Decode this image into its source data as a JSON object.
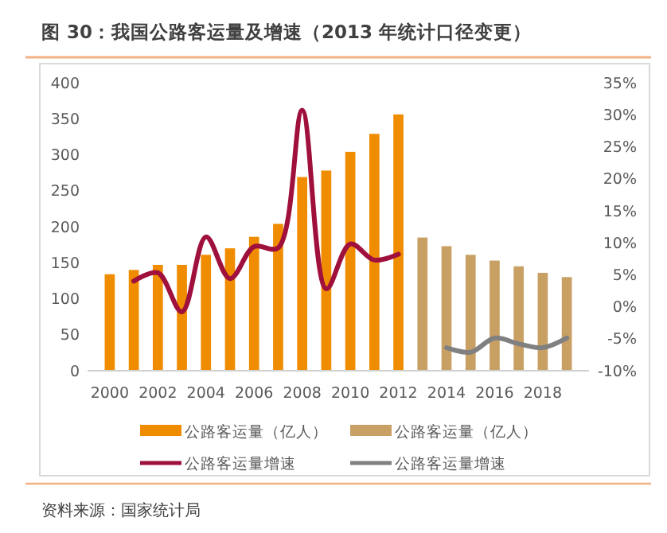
{
  "chart_data": {
    "type": "bar",
    "title": "图 30：我国公路客运量及增速（2013 年统计口径变更）",
    "categories": [
      "2000",
      null,
      "2002",
      null,
      "2004",
      null,
      "2006",
      null,
      "2008",
      null,
      "2010",
      null,
      "2012",
      null,
      "2014",
      null,
      "2016",
      null,
      "2018",
      null
    ],
    "series": [
      {
        "name": "公路客运量（亿人）",
        "color": "#f08c00",
        "values": [
          134,
          140,
          147,
          147,
          161,
          170,
          186,
          204,
          269,
          278,
          304,
          329,
          356,
          null,
          null,
          null,
          null,
          null,
          null,
          null
        ]
      },
      {
        "name": "公路客运量（亿人）",
        "color": "#c8a064",
        "values": [
          null,
          null,
          null,
          null,
          null,
          null,
          null,
          null,
          null,
          null,
          null,
          null,
          null,
          185,
          173,
          161,
          153,
          145,
          136,
          130
        ]
      },
      {
        "name": "公路客运量增速",
        "type": "line",
        "axis": "y2",
        "color": "#a0103c",
        "values": [
          null,
          4.0,
          5.3,
          -0.8,
          10.9,
          4.4,
          9.4,
          9.2,
          30.7,
          2.8,
          9.8,
          7.3,
          8.2,
          null,
          null,
          null,
          null,
          null,
          null,
          null
        ]
      },
      {
        "name": "公路客运量增速",
        "type": "line",
        "axis": "y2",
        "color": "#808080",
        "values": [
          null,
          null,
          null,
          null,
          null,
          null,
          null,
          null,
          null,
          null,
          null,
          null,
          null,
          null,
          -6.4,
          -7.1,
          -4.9,
          -5.8,
          -6.4,
          -4.9
        ]
      }
    ],
    "ylim": [
      0,
      400
    ],
    "yticks": [
      0,
      50,
      100,
      150,
      200,
      250,
      300,
      350,
      400
    ],
    "y2lim": [
      -10,
      35
    ],
    "y2ticks": [
      {
        "value": -10,
        "label": "-10%"
      },
      {
        "value": -5,
        "label": "-5%"
      },
      {
        "value": 0,
        "label": "0%"
      },
      {
        "value": 5,
        "label": "5%"
      },
      {
        "value": 10,
        "label": "10%"
      },
      {
        "value": 15,
        "label": "15%"
      },
      {
        "value": 20,
        "label": "20%"
      },
      {
        "value": 25,
        "label": "25%"
      },
      {
        "value": 30,
        "label": "30%"
      },
      {
        "value": 35,
        "label": "35%"
      }
    ],
    "legend": "bottom",
    "annotations": [
      "资料来源：国家统计局"
    ]
  }
}
